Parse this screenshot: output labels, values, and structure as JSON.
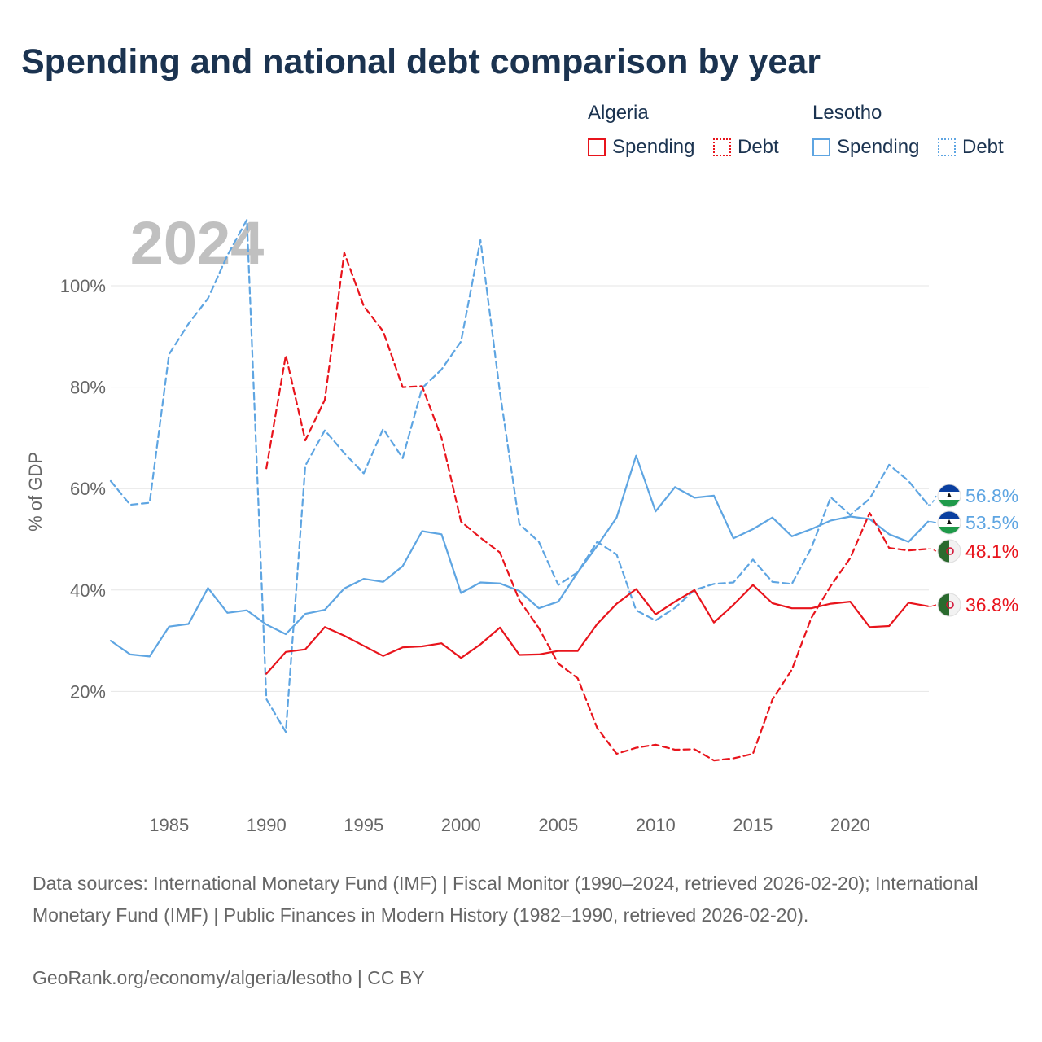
{
  "title": "Spending and national debt comparison by year",
  "colors": {
    "algeria": "#e8141c",
    "lesotho": "#5ea5e2",
    "grid": "#e6e6e6",
    "axis_text": "#666666",
    "year_watermark": "#c0c0c0"
  },
  "legend": {
    "groups": [
      {
        "name": "Algeria",
        "items": [
          {
            "label": "Spending",
            "style": "solid"
          },
          {
            "label": "Debt",
            "style": "dotted"
          }
        ]
      },
      {
        "name": "Lesotho",
        "items": [
          {
            "label": "Spending",
            "style": "solid"
          },
          {
            "label": "Debt",
            "style": "dotted"
          }
        ]
      }
    ]
  },
  "chart_data": {
    "type": "line",
    "year_label": "2024",
    "ylabel": "% of GDP",
    "xlabel": "",
    "xlim": [
      1982,
      2024
    ],
    "ylim": [
      0,
      115
    ],
    "xticks": [
      {
        "value": 1985,
        "label": "1985"
      },
      {
        "value": 1990,
        "label": "1990"
      },
      {
        "value": 1995,
        "label": "1995"
      },
      {
        "value": 2000,
        "label": "2000"
      },
      {
        "value": 2005,
        "label": "2005"
      },
      {
        "value": 2010,
        "label": "2010"
      },
      {
        "value": 2015,
        "label": "2015"
      },
      {
        "value": 2020,
        "label": "2020"
      }
    ],
    "yticks": [
      {
        "value": 20,
        "label": "20%"
      },
      {
        "value": 40,
        "label": "40%"
      },
      {
        "value": 60,
        "label": "60%"
      },
      {
        "value": 80,
        "label": "80%"
      },
      {
        "value": 100,
        "label": "100%"
      }
    ],
    "series": [
      {
        "name": "Lesotho Debt",
        "country": "Lesotho",
        "dash": true,
        "color": "#5ea5e2",
        "end_label": "56.8%",
        "x": [
          1982,
          1983,
          1984,
          1985,
          1986,
          1987,
          1988,
          1989,
          1990,
          1991,
          1992,
          1993,
          1994,
          1995,
          1996,
          1997,
          1998,
          1999,
          2000,
          2001,
          2002,
          2003,
          2004,
          2005,
          2006,
          2007,
          2008,
          2009,
          2010,
          2011,
          2012,
          2013,
          2014,
          2015,
          2016,
          2017,
          2018,
          2019,
          2020,
          2021,
          2022,
          2023,
          2024
        ],
        "values": [
          61.5,
          56.8,
          57.2,
          86.5,
          92.5,
          97.5,
          106.0,
          113.0,
          18.5,
          12.0,
          64.5,
          71.5,
          67.0,
          63.0,
          71.8,
          66.0,
          79.8,
          83.5,
          89.0,
          109.0,
          79.0,
          53.0,
          49.5,
          41.0,
          43.5,
          49.5,
          47.0,
          36.0,
          34.0,
          36.5,
          40.0,
          41.2,
          41.5,
          46.0,
          41.6,
          41.2,
          48.3,
          58.3,
          54.8,
          58.0,
          64.7,
          61.5,
          56.8
        ]
      },
      {
        "name": "Lesotho Spending",
        "country": "Lesotho",
        "dash": false,
        "color": "#5ea5e2",
        "end_label": "53.5%",
        "x": [
          1982,
          1983,
          1984,
          1985,
          1986,
          1987,
          1988,
          1989,
          1990,
          1991,
          1992,
          1993,
          1994,
          1995,
          1996,
          1997,
          1998,
          1999,
          2000,
          2001,
          2002,
          2003,
          2004,
          2005,
          2006,
          2007,
          2008,
          2009,
          2010,
          2011,
          2012,
          2013,
          2014,
          2015,
          2016,
          2017,
          2018,
          2019,
          2020,
          2021,
          2022,
          2023,
          2024
        ],
        "values": [
          30.0,
          27.3,
          26.9,
          32.8,
          33.3,
          40.4,
          35.5,
          36.0,
          33.2,
          31.3,
          35.3,
          36.1,
          40.3,
          42.2,
          41.6,
          44.7,
          51.6,
          51.0,
          39.4,
          41.5,
          41.3,
          39.8,
          36.4,
          37.7,
          43.5,
          48.7,
          54.3,
          66.5,
          55.5,
          60.3,
          58.2,
          58.6,
          50.2,
          52.0,
          54.3,
          50.6,
          52.0,
          53.7,
          54.5,
          54.0,
          51.0,
          49.5,
          53.5
        ]
      },
      {
        "name": "Algeria Debt",
        "country": "Algeria",
        "dash": true,
        "color": "#e8141c",
        "end_label": "48.1%",
        "x": [
          1990,
          1991,
          1992,
          1993,
          1994,
          1995,
          1996,
          1997,
          1998,
          1999,
          2000,
          2001,
          2002,
          2003,
          2004,
          2005,
          2006,
          2007,
          2008,
          2009,
          2010,
          2011,
          2012,
          2013,
          2014,
          2015,
          2016,
          2017,
          2018,
          2019,
          2020,
          2021,
          2022,
          2023,
          2024
        ],
        "values": [
          64.0,
          86.3,
          69.5,
          77.5,
          106.5,
          96.0,
          91.0,
          80.0,
          80.2,
          70.0,
          53.5,
          50.3,
          47.4,
          38.0,
          32.5,
          25.5,
          22.6,
          12.8,
          7.7,
          8.9,
          9.5,
          8.5,
          8.6,
          6.4,
          6.8,
          7.7,
          18.4,
          24.3,
          34.5,
          40.8,
          46.3,
          55.2,
          48.3,
          47.8,
          48.1
        ]
      },
      {
        "name": "Algeria Spending",
        "country": "Algeria",
        "dash": false,
        "color": "#e8141c",
        "end_label": "36.8%",
        "x": [
          1990,
          1991,
          1992,
          1993,
          1994,
          1995,
          1996,
          1997,
          1998,
          1999,
          2000,
          2001,
          2002,
          2003,
          2004,
          2005,
          2006,
          2007,
          2008,
          2009,
          2010,
          2011,
          2012,
          2013,
          2014,
          2015,
          2016,
          2017,
          2018,
          2019,
          2020,
          2021,
          2022,
          2023,
          2024
        ],
        "values": [
          23.5,
          27.8,
          28.3,
          32.7,
          31.0,
          29.0,
          27.0,
          28.7,
          28.9,
          29.5,
          26.6,
          29.3,
          32.6,
          27.2,
          27.3,
          28.0,
          28.0,
          33.3,
          37.3,
          40.2,
          35.2,
          37.7,
          40.0,
          33.6,
          37.1,
          41.0,
          37.4,
          36.4,
          36.4,
          37.3,
          37.7,
          32.7,
          32.9,
          37.5,
          36.8
        ]
      }
    ]
  },
  "source_text": "Data sources: International Monetary Fund (IMF) | Fiscal Monitor (1990–2024, retrieved 2026-02-20); International Monetary Fund (IMF) | Public Finances in Modern History (1982–1990, retrieved 2026-02-20).",
  "credit_text": "GeoRank.org/economy/algeria/lesotho | CC BY"
}
